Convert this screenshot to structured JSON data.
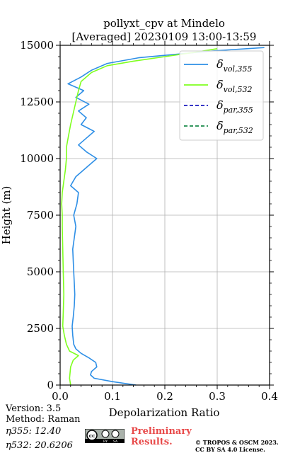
{
  "chart_data": {
    "type": "line",
    "title": "pollyxt_cpv at Mindelo",
    "subtitle": "[Averaged] 20230109 13:00-13:59",
    "xlabel": "Depolarization Ratio",
    "ylabel": "Height (m)",
    "xlim": [
      0.0,
      0.4
    ],
    "ylim": [
      0,
      15000
    ],
    "xticks": [
      "0.0",
      "0.1",
      "0.2",
      "0.3",
      "0.4"
    ],
    "yticks": [
      "0",
      "2500",
      "5000",
      "7500",
      "10000",
      "12500",
      "15000"
    ],
    "grid": true,
    "legend_position": "top-right",
    "colors": {
      "vol_355": "#2e8fe6",
      "vol_532": "#7fff1f",
      "par_355": "#1a1abf",
      "par_532": "#1a8a4a"
    },
    "series": [
      {
        "name": "δvol,355",
        "legend_base": "δ",
        "legend_sub": "vol,355",
        "style": "solid",
        "points": [
          [
            0.145,
            0
          ],
          [
            0.1,
            150
          ],
          [
            0.065,
            300
          ],
          [
            0.058,
            450
          ],
          [
            0.06,
            600
          ],
          [
            0.07,
            800
          ],
          [
            0.068,
            1000
          ],
          [
            0.055,
            1200
          ],
          [
            0.04,
            1400
          ],
          [
            0.03,
            1600
          ],
          [
            0.026,
            1800
          ],
          [
            0.024,
            2200
          ],
          [
            0.023,
            2600
          ],
          [
            0.025,
            3000
          ],
          [
            0.027,
            3500
          ],
          [
            0.028,
            4000
          ],
          [
            0.027,
            4500
          ],
          [
            0.026,
            5000
          ],
          [
            0.025,
            5500
          ],
          [
            0.024,
            6000
          ],
          [
            0.027,
            6500
          ],
          [
            0.03,
            7000
          ],
          [
            0.026,
            7500
          ],
          [
            0.032,
            8000
          ],
          [
            0.035,
            8500
          ],
          [
            0.02,
            8800
          ],
          [
            0.03,
            9200
          ],
          [
            0.045,
            9500
          ],
          [
            0.06,
            9800
          ],
          [
            0.07,
            10000
          ],
          [
            0.05,
            10300
          ],
          [
            0.035,
            10600
          ],
          [
            0.05,
            10900
          ],
          [
            0.065,
            11200
          ],
          [
            0.04,
            11500
          ],
          [
            0.05,
            11800
          ],
          [
            0.035,
            12100
          ],
          [
            0.055,
            12400
          ],
          [
            0.03,
            12700
          ],
          [
            0.045,
            13000
          ],
          [
            0.015,
            13300
          ],
          [
            0.04,
            13600
          ],
          [
            0.06,
            13900
          ],
          [
            0.09,
            14200
          ],
          [
            0.15,
            14450
          ],
          [
            0.22,
            14600
          ],
          [
            0.29,
            14750
          ],
          [
            0.39,
            14900
          ]
        ]
      },
      {
        "name": "δvol,532",
        "legend_base": "δ",
        "legend_sub": "vol,532",
        "style": "solid",
        "points": [
          [
            0.02,
            0
          ],
          [
            0.018,
            300
          ],
          [
            0.02,
            800
          ],
          [
            0.025,
            1100
          ],
          [
            0.035,
            1300
          ],
          [
            0.018,
            1500
          ],
          [
            0.012,
            1800
          ],
          [
            0.008,
            2200
          ],
          [
            0.005,
            2600
          ],
          [
            0.006,
            3200
          ],
          [
            0.007,
            4000
          ],
          [
            0.006,
            5000
          ],
          [
            0.005,
            6000
          ],
          [
            0.004,
            7000
          ],
          [
            0.004,
            7500
          ],
          [
            0.003,
            8000
          ],
          [
            0.004,
            8500
          ],
          [
            0.007,
            9000
          ],
          [
            0.01,
            9500
          ],
          [
            0.012,
            10000
          ],
          [
            0.012,
            10500
          ],
          [
            0.016,
            11000
          ],
          [
            0.02,
            11500
          ],
          [
            0.025,
            12000
          ],
          [
            0.03,
            12500
          ],
          [
            0.035,
            13000
          ],
          [
            0.04,
            13400
          ],
          [
            0.06,
            13800
          ],
          [
            0.09,
            14100
          ],
          [
            0.14,
            14300
          ],
          [
            0.2,
            14500
          ],
          [
            0.26,
            14700
          ],
          [
            0.3,
            14850
          ]
        ]
      },
      {
        "name": "δpar,355",
        "legend_base": "δ",
        "legend_sub": "par,355",
        "style": "dashed",
        "points": []
      },
      {
        "name": "δpar,532",
        "legend_base": "δ",
        "legend_sub": "par,532",
        "style": "dashed",
        "points": []
      }
    ]
  },
  "footer": {
    "version": "Version: 3.5",
    "method": "Method: Raman",
    "eta355": "η355:  12.40",
    "eta532": "η532: 20.6206",
    "preliminary_line1": "Preliminary",
    "preliminary_line2": "Results.",
    "copyright_line1": "© TROPOS & OSCM 2023.",
    "copyright_line2": "CC BY SA 4.0 License."
  },
  "cc_badge": {
    "text": "cc",
    "by": "BY",
    "sa": "SA"
  }
}
